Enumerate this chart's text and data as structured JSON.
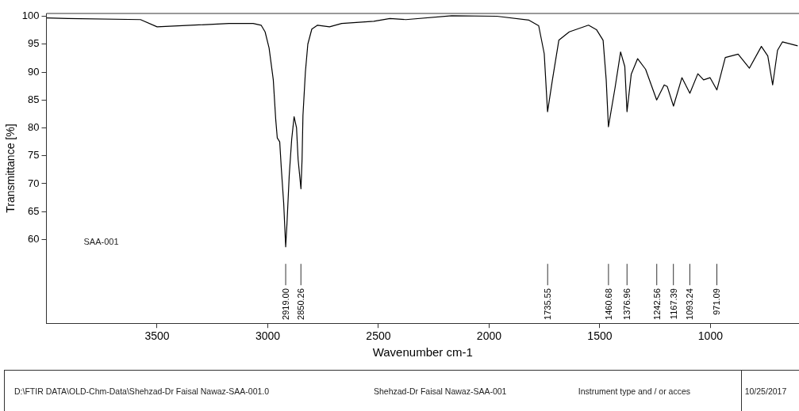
{
  "chart_data": {
    "type": "line",
    "xlabel": "Wavenumber cm-1",
    "ylabel": "Transmittance [%]",
    "xlim": [
      4000,
      600
    ],
    "ylim": [
      45,
      100.5
    ],
    "xticks": [
      3500,
      3000,
      2500,
      2000,
      1500,
      1000
    ],
    "yticks": [
      60,
      65,
      70,
      75,
      80,
      85,
      90,
      95,
      100
    ],
    "grid": false,
    "legend": false,
    "marker": "none",
    "line_style": "solid",
    "series": [
      {
        "name": "SAA-001",
        "color": "#000000",
        "x": [
          4000,
          3902,
          3575,
          3500,
          3175,
          3066,
          3030,
          3012,
          2994,
          2975,
          2964,
          2957,
          2946,
          2939,
          2928,
          2919,
          2913,
          2903,
          2892,
          2881,
          2870,
          2863,
          2850,
          2845,
          2841,
          2830,
          2819,
          2801,
          2775,
          2721,
          2666,
          2521,
          2448,
          2376,
          2169,
          1965,
          1820,
          1776,
          1751,
          1736,
          1714,
          1685,
          1638,
          1551,
          1515,
          1485,
          1471,
          1461,
          1431,
          1406,
          1387,
          1377,
          1358,
          1329,
          1293,
          1243,
          1209,
          1195,
          1167,
          1129,
          1093,
          1057,
          1031,
          1002,
          971,
          933,
          875,
          824,
          770,
          741,
          719,
          697,
          675,
          606
        ],
        "values": [
          99.7,
          99.6,
          99.4,
          98.1,
          98.7,
          98.7,
          98.4,
          97.2,
          94.3,
          88.6,
          81.5,
          78.2,
          77.5,
          72.9,
          66.5,
          58.7,
          63,
          71.5,
          77.9,
          82,
          80,
          74.4,
          69.1,
          74.4,
          82.2,
          90,
          95,
          97.7,
          98.4,
          98.1,
          98.7,
          99.1,
          99.6,
          99.4,
          100.1,
          100,
          99.3,
          98.3,
          93.3,
          82.9,
          88.6,
          95.7,
          97.2,
          98.4,
          97.6,
          95.7,
          88.6,
          80.2,
          87.2,
          93.6,
          91,
          82.9,
          89.6,
          92.4,
          90.5,
          85,
          87.7,
          87.4,
          83.9,
          89,
          86.2,
          89.7,
          88.6,
          89,
          86.8,
          92.6,
          93.2,
          90.7,
          94.6,
          92.9,
          87.7,
          93.9,
          95.4,
          94.7
        ]
      }
    ],
    "annotations": [
      {
        "text": "2919.00",
        "x": 2919
      },
      {
        "text": "2850.26",
        "x": 2850.26
      },
      {
        "text": "1735.55",
        "x": 1735.55
      },
      {
        "text": "1460.68",
        "x": 1460.68
      },
      {
        "text": "1376.96",
        "x": 1376.96
      },
      {
        "text": "1242.56",
        "x": 1242.56
      },
      {
        "text": "1167.39",
        "x": 1167.39
      },
      {
        "text": "1093.24",
        "x": 1093.24
      },
      {
        "text": "971.09",
        "x": 971.09
      },
      "D:\\FTIR DATA\\OLD-Chm-Data\\Shehzad-Dr Faisal Nawaz-SAA-001.0",
      "Shehzad-Dr Faisal Nawaz-SAA-001",
      "Instrument type and / or acces",
      "10/25/2017"
    ]
  }
}
